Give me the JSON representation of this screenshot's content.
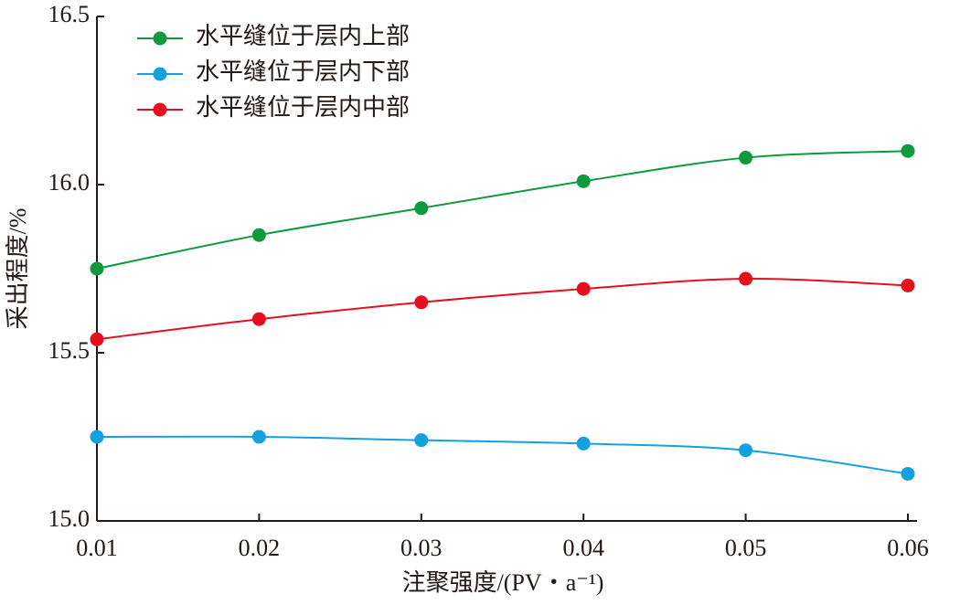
{
  "chart_data": {
    "type": "line",
    "x_label": "注聚强度/(PV・a⁻¹)",
    "y_label": "采出程度/%",
    "x": [
      0.01,
      0.02,
      0.03,
      0.04,
      0.05,
      0.06
    ],
    "series": [
      {
        "name": "水平缝位于层内上部",
        "color": "#0f9a3e",
        "values": [
          15.75,
          15.85,
          15.93,
          16.01,
          16.08,
          16.1
        ]
      },
      {
        "name": "水平缝位于层内下部",
        "color": "#14a1e0",
        "values": [
          15.25,
          15.25,
          15.24,
          15.23,
          15.21,
          15.14
        ]
      },
      {
        "name": "水平缝位于层内中部",
        "color": "#e60f1e",
        "values": [
          15.54,
          15.6,
          15.65,
          15.69,
          15.72,
          15.7
        ]
      }
    ],
    "xlim": [
      0.01,
      0.06
    ],
    "xticks": [
      0.01,
      0.02,
      0.03,
      0.04,
      0.05,
      0.06
    ],
    "ylim": [
      15.0,
      16.5
    ],
    "yticks": [
      {
        "value": 15.0,
        "label": "15.0"
      },
      {
        "value": 15.5,
        "label": "15.5"
      },
      {
        "value": 16.0,
        "label": "16.0"
      },
      {
        "value": 16.5,
        "label": "16.5"
      }
    ],
    "smooth": true,
    "legend": "upper left"
  }
}
